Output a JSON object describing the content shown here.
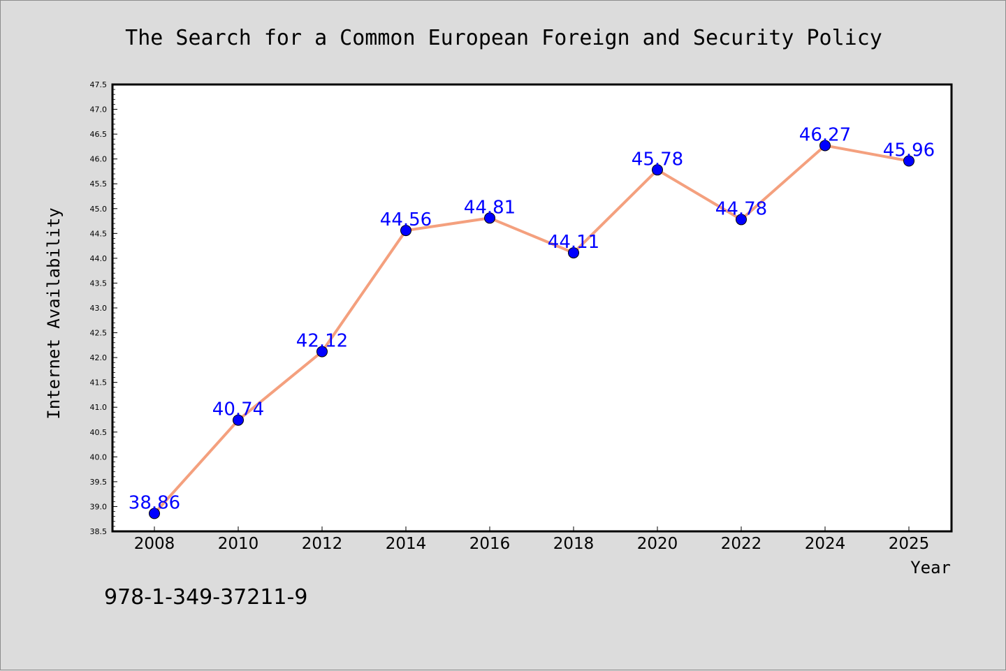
{
  "chart_data": {
    "type": "line",
    "title": "The Search for a Common European Foreign and Security Policy",
    "xlabel": "Year",
    "ylabel": "Internet Availability",
    "x": [
      "2008",
      "2010",
      "2012",
      "2014",
      "2016",
      "2018",
      "2020",
      "2022",
      "2024",
      "2025"
    ],
    "series": [
      {
        "values": [
          38.86,
          40.74,
          42.12,
          44.56,
          44.81,
          44.11,
          45.78,
          44.78,
          46.27,
          45.96
        ],
        "data_labels": [
          "38.86",
          "40.74",
          "42.12",
          "44.56",
          "44.81",
          "44.11",
          "45.78",
          "44.78",
          "46.27",
          "45.96"
        ],
        "line_color": "#f4a07e",
        "marker_color": "#0000ff"
      }
    ],
    "ylim": [
      38.5,
      47.5
    ],
    "yticks": [
      "38.5",
      "39.0",
      "39.5",
      "40.0",
      "40.5",
      "41.0",
      "41.5",
      "42.0",
      "42.5",
      "43.0",
      "43.5",
      "44.0",
      "44.5",
      "45.0",
      "45.5",
      "46.0",
      "46.5",
      "47.0",
      "47.5"
    ],
    "grid": false,
    "legend": "none"
  },
  "annotation": {
    "isbn": "978-1-349-37211-9"
  },
  "colors": {
    "background": "#dcdcdc",
    "plot_background": "#ffffff",
    "label_color": "#0000ff"
  }
}
